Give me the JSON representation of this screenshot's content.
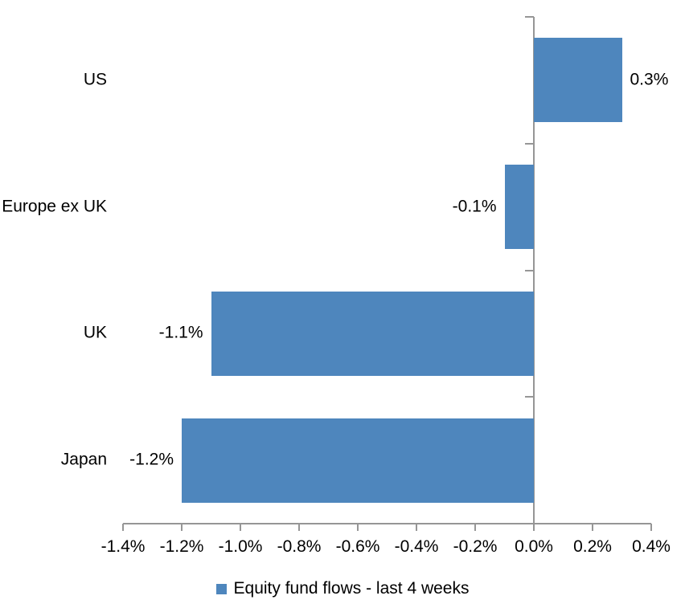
{
  "chart_data": {
    "type": "bar",
    "orientation": "horizontal",
    "title": "",
    "categories": [
      "US",
      "Europe ex UK",
      "UK",
      "Japan"
    ],
    "values": [
      0.3,
      -0.1,
      -1.1,
      -1.2
    ],
    "data_labels": [
      "0.3%",
      "-0.1%",
      "-1.1%",
      "-1.2%"
    ],
    "series_name": "Equity fund flows - last 4 weeks",
    "xlabel": "",
    "ylabel": "",
    "xlim": [
      -1.4,
      0.4
    ],
    "x_tick_values": [
      -1.4,
      -1.2,
      -1.0,
      -0.8,
      -0.6,
      -0.4,
      -0.2,
      0.0,
      0.2,
      0.4
    ],
    "x_tick_labels": [
      "-1.4%",
      "-1.2%",
      "-1.0%",
      "-0.8%",
      "-0.6%",
      "-0.4%",
      "-0.2%",
      "0.0%",
      "0.2%",
      "0.4%"
    ],
    "grid": false,
    "legend_position": "bottom",
    "colors": {
      "bar": "#4E86BD",
      "axis": "#969696",
      "text": "#000000",
      "background": "#FFFFFF"
    }
  }
}
